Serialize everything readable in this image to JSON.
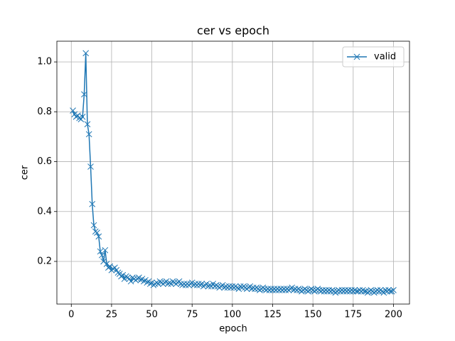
{
  "chart_data": {
    "type": "line",
    "title": "cer vs epoch",
    "xlabel": "epoch",
    "ylabel": "cer",
    "x": [
      1,
      2,
      3,
      4,
      5,
      6,
      7,
      8,
      9,
      10,
      11,
      12,
      13,
      14,
      15,
      16,
      17,
      18,
      19,
      20,
      21,
      22,
      23,
      24,
      25,
      26,
      27,
      28,
      29,
      30,
      31,
      32,
      33,
      34,
      35,
      36,
      37,
      38,
      39,
      40,
      41,
      42,
      43,
      44,
      45,
      46,
      47,
      48,
      49,
      50,
      51,
      52,
      53,
      54,
      55,
      56,
      57,
      58,
      59,
      60,
      61,
      62,
      63,
      64,
      65,
      66,
      67,
      68,
      69,
      70,
      71,
      72,
      73,
      74,
      75,
      76,
      77,
      78,
      79,
      80,
      81,
      82,
      83,
      84,
      85,
      86,
      87,
      88,
      89,
      90,
      91,
      92,
      93,
      94,
      95,
      96,
      97,
      98,
      99,
      100,
      101,
      102,
      103,
      104,
      105,
      106,
      107,
      108,
      109,
      110,
      111,
      112,
      113,
      114,
      115,
      116,
      117,
      118,
      119,
      120,
      121,
      122,
      123,
      124,
      125,
      126,
      127,
      128,
      129,
      130,
      131,
      132,
      133,
      134,
      135,
      136,
      137,
      138,
      139,
      140,
      141,
      142,
      143,
      144,
      145,
      146,
      147,
      148,
      149,
      150,
      151,
      152,
      153,
      154,
      155,
      156,
      157,
      158,
      159,
      160,
      161,
      162,
      163,
      164,
      165,
      166,
      167,
      168,
      169,
      170,
      171,
      172,
      173,
      174,
      175,
      176,
      177,
      178,
      179,
      180,
      181,
      182,
      183,
      184,
      185,
      186,
      187,
      188,
      189,
      190,
      191,
      192,
      193,
      194,
      195,
      196,
      197,
      198,
      199,
      200
    ],
    "series": [
      {
        "name": "valid",
        "color": "#1f77b4",
        "values": [
          0.805,
          0.79,
          0.78,
          0.785,
          0.775,
          0.77,
          0.78,
          0.87,
          1.035,
          0.75,
          0.71,
          0.58,
          0.43,
          0.345,
          0.32,
          0.315,
          0.3,
          0.24,
          0.225,
          0.2,
          0.245,
          0.19,
          0.175,
          0.18,
          0.165,
          0.17,
          0.175,
          0.165,
          0.155,
          0.15,
          0.14,
          0.145,
          0.13,
          0.14,
          0.135,
          0.13,
          0.12,
          0.135,
          0.13,
          0.125,
          0.13,
          0.135,
          0.125,
          0.13,
          0.12,
          0.125,
          0.115,
          0.12,
          0.11,
          0.115,
          0.105,
          0.11,
          0.115,
          0.11,
          0.12,
          0.115,
          0.11,
          0.115,
          0.12,
          0.11,
          0.115,
          0.11,
          0.12,
          0.115,
          0.11,
          0.115,
          0.12,
          0.11,
          0.105,
          0.11,
          0.105,
          0.11,
          0.105,
          0.11,
          0.115,
          0.105,
          0.11,
          0.105,
          0.11,
          0.105,
          0.11,
          0.1,
          0.105,
          0.11,
          0.1,
          0.105,
          0.1,
          0.11,
          0.1,
          0.105,
          0.1,
          0.095,
          0.1,
          0.105,
          0.095,
          0.1,
          0.095,
          0.1,
          0.095,
          0.1,
          0.095,
          0.1,
          0.095,
          0.09,
          0.1,
          0.095,
          0.1,
          0.095,
          0.09,
          0.095,
          0.1,
          0.09,
          0.095,
          0.09,
          0.095,
          0.09,
          0.085,
          0.09,
          0.095,
          0.09,
          0.085,
          0.09,
          0.085,
          0.09,
          0.085,
          0.09,
          0.085,
          0.09,
          0.085,
          0.09,
          0.085,
          0.09,
          0.085,
          0.09,
          0.085,
          0.09,
          0.095,
          0.085,
          0.09,
          0.085,
          0.09,
          0.085,
          0.08,
          0.085,
          0.09,
          0.085,
          0.08,
          0.085,
          0.09,
          0.085,
          0.08,
          0.085,
          0.09,
          0.085,
          0.08,
          0.085,
          0.08,
          0.085,
          0.08,
          0.085,
          0.08,
          0.085,
          0.08,
          0.075,
          0.08,
          0.085,
          0.08,
          0.085,
          0.08,
          0.085,
          0.08,
          0.085,
          0.08,
          0.085,
          0.08,
          0.085,
          0.08,
          0.08,
          0.085,
          0.08,
          0.085,
          0.08,
          0.08,
          0.075,
          0.08,
          0.085,
          0.08,
          0.075,
          0.08,
          0.085,
          0.08,
          0.085,
          0.08,
          0.075,
          0.085,
          0.08,
          0.085,
          0.08,
          0.08,
          0.085
        ]
      }
    ],
    "xlim": [
      -8.95,
      209.95
    ],
    "ylim": [
      0.029,
      1.083
    ],
    "xticks": [
      0,
      25,
      50,
      75,
      100,
      125,
      150,
      175,
      200
    ],
    "yticks": [
      0.2,
      0.4,
      0.6,
      0.8,
      {
        "value": 1,
        "label": "1.0"
      }
    ],
    "grid": true,
    "legend": "upper right"
  }
}
